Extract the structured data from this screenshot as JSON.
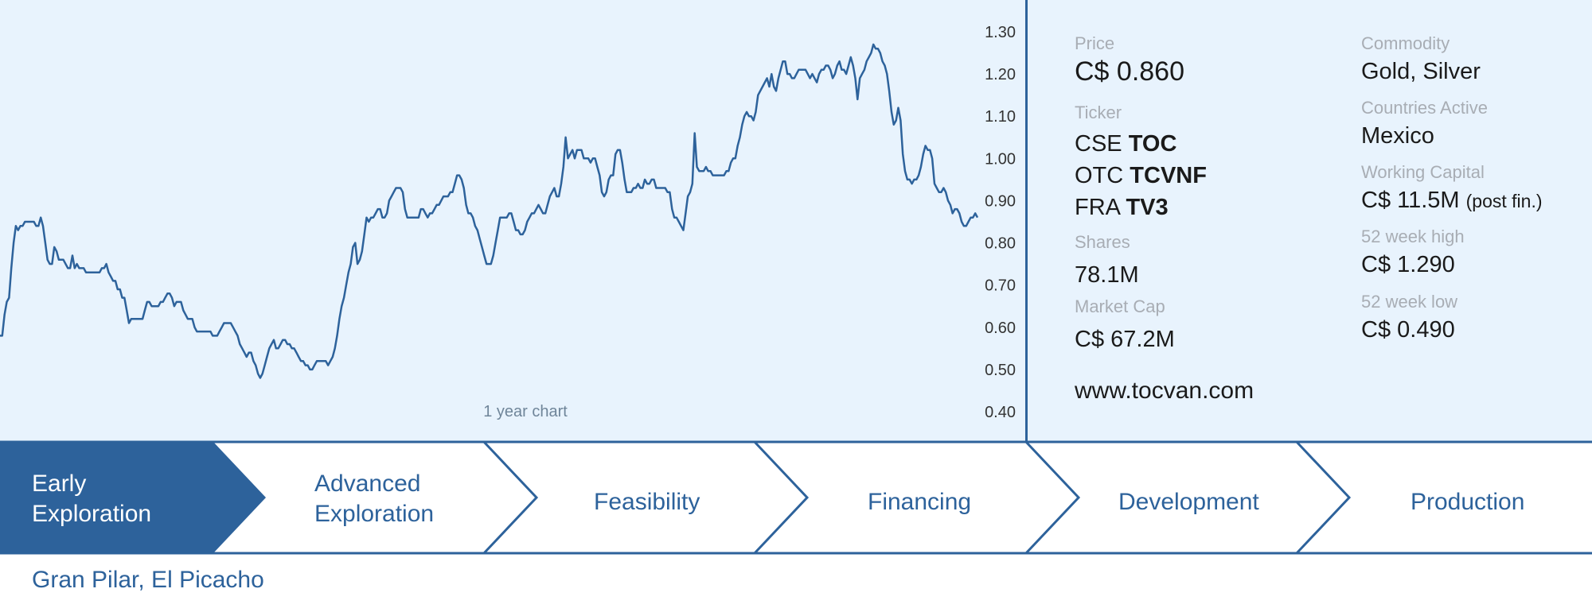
{
  "chart_data": {
    "type": "line",
    "title": "",
    "caption": "1 year chart",
    "xlabel": "",
    "ylabel": "",
    "ylim": [
      0.4,
      1.3
    ],
    "y_ticks": [
      "1.30",
      "1.20",
      "1.10",
      "1.00",
      "0.90",
      "0.80",
      "0.70",
      "0.60",
      "0.50",
      "0.40"
    ],
    "y_tick_values": [
      1.3,
      1.2,
      1.1,
      1.0,
      0.9,
      0.8,
      0.7,
      0.6,
      0.5,
      0.4
    ],
    "grid": false,
    "color": "#2d629b",
    "values": [
      0.58,
      0.58,
      0.63,
      0.66,
      0.67,
      0.74,
      0.8,
      0.84,
      0.83,
      0.84,
      0.84,
      0.85,
      0.85,
      0.85,
      0.85,
      0.85,
      0.84,
      0.84,
      0.86,
      0.84,
      0.8,
      0.76,
      0.75,
      0.75,
      0.79,
      0.78,
      0.76,
      0.76,
      0.76,
      0.75,
      0.74,
      0.74,
      0.77,
      0.74,
      0.75,
      0.74,
      0.74,
      0.74,
      0.73,
      0.73,
      0.73,
      0.73,
      0.73,
      0.73,
      0.73,
      0.74,
      0.74,
      0.75,
      0.73,
      0.72,
      0.71,
      0.71,
      0.69,
      0.69,
      0.67,
      0.67,
      0.64,
      0.61,
      0.62,
      0.62,
      0.62,
      0.62,
      0.62,
      0.62,
      0.64,
      0.66,
      0.66,
      0.65,
      0.65,
      0.65,
      0.65,
      0.66,
      0.66,
      0.67,
      0.68,
      0.68,
      0.67,
      0.65,
      0.66,
      0.66,
      0.66,
      0.64,
      0.63,
      0.62,
      0.62,
      0.62,
      0.6,
      0.59,
      0.59,
      0.59,
      0.59,
      0.59,
      0.59,
      0.59,
      0.58,
      0.58,
      0.58,
      0.59,
      0.6,
      0.61,
      0.61,
      0.61,
      0.61,
      0.6,
      0.59,
      0.58,
      0.56,
      0.55,
      0.54,
      0.53,
      0.54,
      0.54,
      0.52,
      0.51,
      0.49,
      0.48,
      0.49,
      0.51,
      0.53,
      0.55,
      0.56,
      0.57,
      0.55,
      0.55,
      0.56,
      0.57,
      0.57,
      0.56,
      0.56,
      0.55,
      0.55,
      0.54,
      0.53,
      0.52,
      0.52,
      0.51,
      0.51,
      0.5,
      0.5,
      0.51,
      0.52,
      0.52,
      0.52,
      0.52,
      0.52,
      0.51,
      0.52,
      0.53,
      0.55,
      0.58,
      0.62,
      0.65,
      0.67,
      0.7,
      0.73,
      0.75,
      0.79,
      0.8,
      0.75,
      0.76,
      0.78,
      0.82,
      0.86,
      0.85,
      0.86,
      0.86,
      0.87,
      0.88,
      0.88,
      0.86,
      0.86,
      0.87,
      0.9,
      0.91,
      0.92,
      0.93,
      0.93,
      0.93,
      0.92,
      0.88,
      0.86,
      0.86,
      0.86,
      0.86,
      0.86,
      0.86,
      0.88,
      0.88,
      0.87,
      0.86,
      0.87,
      0.87,
      0.88,
      0.89,
      0.89,
      0.9,
      0.91,
      0.91,
      0.91,
      0.92,
      0.92,
      0.94,
      0.96,
      0.96,
      0.95,
      0.93,
      0.89,
      0.87,
      0.87,
      0.86,
      0.84,
      0.83,
      0.81,
      0.79,
      0.77,
      0.75,
      0.75,
      0.75,
      0.77,
      0.8,
      0.83,
      0.86,
      0.86,
      0.86,
      0.86,
      0.87,
      0.87,
      0.85,
      0.83,
      0.83,
      0.82,
      0.82,
      0.83,
      0.85,
      0.86,
      0.87,
      0.87,
      0.88,
      0.89,
      0.88,
      0.87,
      0.87,
      0.89,
      0.91,
      0.92,
      0.93,
      0.91,
      0.91,
      0.94,
      0.98,
      1.05,
      1.0,
      1.01,
      1.02,
      1.0,
      1.02,
      1.02,
      1.02,
      1.0,
      1.0,
      1.0,
      0.99,
      1.0,
      1.0,
      0.98,
      0.96,
      0.92,
      0.91,
      0.92,
      0.95,
      0.96,
      0.96,
      1.01,
      1.02,
      1.02,
      0.99,
      0.95,
      0.92,
      0.92,
      0.92,
      0.93,
      0.93,
      0.94,
      0.93,
      0.93,
      0.95,
      0.94,
      0.94,
      0.95,
      0.95,
      0.93,
      0.93,
      0.93,
      0.93,
      0.93,
      0.92,
      0.92,
      0.88,
      0.86,
      0.86,
      0.85,
      0.84,
      0.83,
      0.87,
      0.91,
      0.92,
      0.94,
      1.06,
      0.98,
      0.97,
      0.97,
      0.97,
      0.98,
      0.97,
      0.97,
      0.96,
      0.96,
      0.96,
      0.96,
      0.96,
      0.96,
      0.97,
      0.97,
      0.99,
      1.0,
      1.0,
      1.03,
      1.05,
      1.08,
      1.1,
      1.11,
      1.1,
      1.1,
      1.09,
      1.11,
      1.15,
      1.16,
      1.17,
      1.18,
      1.19,
      1.17,
      1.2,
      1.17,
      1.16,
      1.19,
      1.21,
      1.23,
      1.23,
      1.2,
      1.2,
      1.19,
      1.19,
      1.2,
      1.21,
      1.21,
      1.21,
      1.21,
      1.2,
      1.19,
      1.2,
      1.19,
      1.18,
      1.2,
      1.21,
      1.21,
      1.22,
      1.22,
      1.21,
      1.19,
      1.2,
      1.22,
      1.23,
      1.21,
      1.21,
      1.2,
      1.22,
      1.24,
      1.22,
      1.19,
      1.14,
      1.19,
      1.2,
      1.21,
      1.23,
      1.24,
      1.25,
      1.27,
      1.26,
      1.26,
      1.25,
      1.23,
      1.22,
      1.2,
      1.16,
      1.11,
      1.08,
      1.09,
      1.12,
      1.09,
      1.01,
      0.97,
      0.95,
      0.95,
      0.94,
      0.95,
      0.95,
      0.96,
      0.98,
      1.01,
      1.03,
      1.02,
      1.02,
      1.0,
      0.94,
      0.93,
      0.92,
      0.92,
      0.93,
      0.92,
      0.9,
      0.89,
      0.87,
      0.88,
      0.88,
      0.87,
      0.85,
      0.84,
      0.84,
      0.85,
      0.86,
      0.86,
      0.87,
      0.86
    ]
  },
  "stats": {
    "price_label": "Price",
    "price_value": "C$ 0.860",
    "ticker_label": "Ticker",
    "tickers": [
      {
        "exchange": "CSE",
        "symbol": "TOC"
      },
      {
        "exchange": "OTC",
        "symbol": "TCVNF"
      },
      {
        "exchange": "FRA",
        "symbol": "TV3"
      }
    ],
    "shares_label": "Shares",
    "shares_value": "78.1M",
    "market_cap_label": "Market Cap",
    "market_cap_value": "C$ 67.2M",
    "website": "www.tocvan.com",
    "commodity_label": "Commodity",
    "commodity_value": "Gold, Silver",
    "countries_label": "Countries Active",
    "countries_value": "Mexico",
    "working_capital_label": "Working Capital",
    "working_capital_value": "C$ 11.5M",
    "working_capital_note": "(post fin.)",
    "high_label": "52 week high",
    "high_value": "C$ 1.290",
    "low_label": "52 week low",
    "low_value": "C$ 0.490"
  },
  "pipeline": {
    "active_index": 0,
    "active_color": "#2d629b",
    "stages": [
      {
        "line1": "Early",
        "line2": "Exploration"
      },
      {
        "line1": "Advanced",
        "line2": "Exploration"
      },
      {
        "line1": "Feasibility",
        "line2": ""
      },
      {
        "line1": "Financing",
        "line2": ""
      },
      {
        "line1": "Development",
        "line2": ""
      },
      {
        "line1": "Production",
        "line2": ""
      }
    ],
    "projects": "Gran Pilar, El Picacho"
  }
}
